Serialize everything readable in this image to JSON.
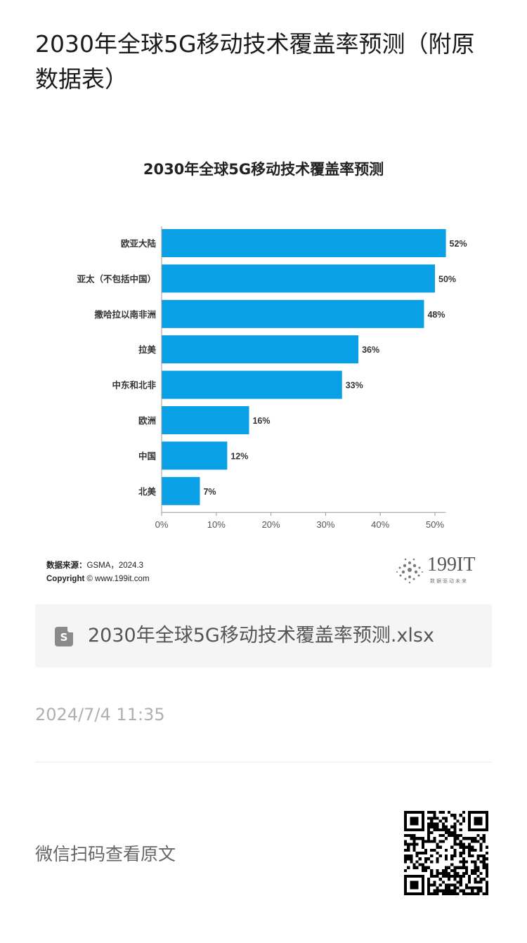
{
  "page": {
    "title": "2030年全球5G移动技术覆盖率预测（附原数据表）",
    "file_name": "2030年全球5G移动技术覆盖率预测.xlsx",
    "file_icon": "spreadsheet-icon",
    "file_icon_letter": "S",
    "timestamp": "2024/7/4 11:35",
    "scan_label": "微信扫码查看原文"
  },
  "source": {
    "label": "数据来源：",
    "value": "GSMA，2024.3",
    "copyright_label": "Copyright",
    "copyright_value": "© www.199it.com"
  },
  "logo": {
    "text": "199IT",
    "tagline": "数据驱动未来"
  },
  "chart_data": {
    "type": "bar",
    "orientation": "horizontal",
    "title": "2030年全球5G移动技术覆盖率预测",
    "categories": [
      "欧亚大陆",
      "亚太（不包括中国）",
      "撒哈拉以南非洲",
      "拉美",
      "中东和北非",
      "欧洲",
      "中国",
      "北美"
    ],
    "values": [
      52,
      50,
      48,
      36,
      33,
      16,
      12,
      7
    ],
    "value_labels": [
      "52%",
      "50%",
      "48%",
      "36%",
      "33%",
      "16%",
      "12%",
      "7%"
    ],
    "xticks": [
      "0%",
      "10%",
      "20%",
      "30%",
      "40%",
      "50%"
    ],
    "xlim": [
      0,
      52
    ],
    "grid": false,
    "bar_color": "#0aa0e6"
  }
}
